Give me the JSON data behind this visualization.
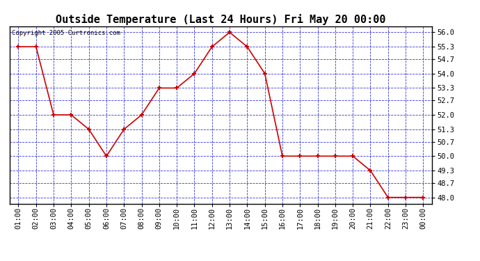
{
  "title": "Outside Temperature (Last 24 Hours) Fri May 20 00:00",
  "copyright": "Copyright 2005 Curtronics.com",
  "x_labels": [
    "01:00",
    "02:00",
    "03:00",
    "04:00",
    "05:00",
    "06:00",
    "07:00",
    "08:00",
    "09:00",
    "10:00",
    "11:00",
    "12:00",
    "13:00",
    "14:00",
    "15:00",
    "16:00",
    "17:00",
    "18:00",
    "19:00",
    "20:00",
    "21:00",
    "22:00",
    "23:00",
    "00:00"
  ],
  "y_values": [
    55.3,
    55.3,
    52.0,
    52.0,
    51.3,
    50.0,
    51.3,
    52.0,
    53.3,
    53.3,
    54.0,
    55.3,
    56.0,
    55.3,
    54.0,
    50.0,
    50.0,
    50.0,
    50.0,
    50.0,
    49.3,
    48.0,
    48.0,
    48.0
  ],
  "y_ticks": [
    48.0,
    48.7,
    49.3,
    50.0,
    50.7,
    51.3,
    52.0,
    52.7,
    53.3,
    54.0,
    54.7,
    55.3,
    56.0
  ],
  "ylim": [
    47.7,
    56.3
  ],
  "line_color": "#cc0000",
  "marker_color": "#cc0000",
  "bg_color": "#ffffff",
  "plot_bg_color": "#ffffff",
  "grid_color": "#0000cc",
  "title_fontsize": 11,
  "copyright_fontsize": 6.5,
  "tick_fontsize": 7.5
}
